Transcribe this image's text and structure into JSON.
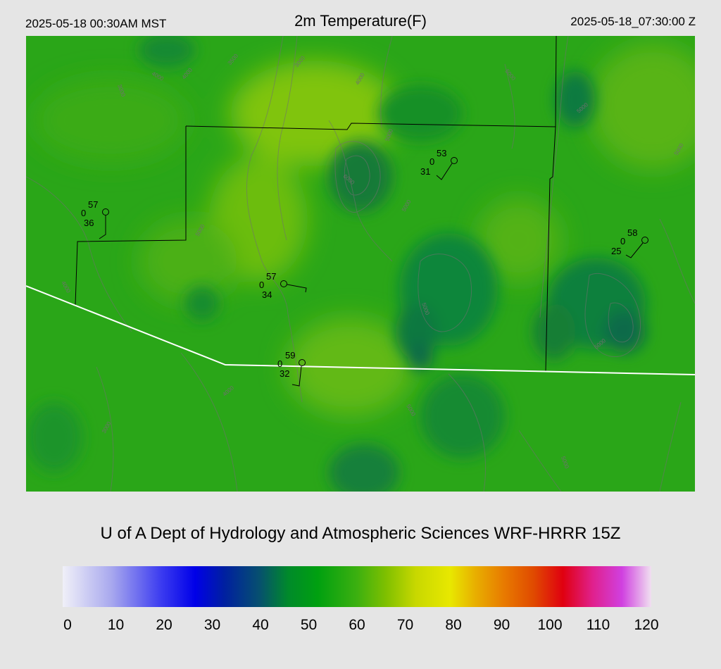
{
  "header": {
    "local_time": "2025-05-18 00:30AM MST",
    "title": "2m Temperature(F)",
    "utc_time": "2025-05-18_07:30:00 Z"
  },
  "caption": "U of A Dept of Hydrology and Atmospheric Sciences WRF-HRRR 15Z",
  "stations": [
    {
      "temp": "57",
      "precip": "0",
      "dewpoint": "36"
    },
    {
      "temp": "53",
      "precip": "0",
      "dewpoint": "31"
    },
    {
      "temp": "58",
      "precip": "0",
      "dewpoint": "25"
    },
    {
      "temp": "57",
      "precip": "0",
      "dewpoint": "34"
    },
    {
      "temp": "59",
      "precip": "0",
      "dewpoint": "32"
    }
  ],
  "contour_labels": [
    "3500",
    "3000",
    "4000",
    "4000",
    "4000",
    "5000",
    "6000",
    "5000",
    "5000",
    "5000",
    "5000",
    "3000",
    "4000",
    "5000",
    "5000",
    "4000",
    "3000",
    "5000",
    "5000",
    "5000"
  ],
  "colorbar": {
    "ticks": [
      "0",
      "10",
      "20",
      "30",
      "40",
      "50",
      "60",
      "70",
      "80",
      "90",
      "100",
      "110",
      "120"
    ],
    "stops": [
      {
        "value": 0,
        "color": "#f0f0f8"
      },
      {
        "value": 10,
        "color": "#a8a8ee"
      },
      {
        "value": 20,
        "color": "#3c3cf0"
      },
      {
        "value": 27,
        "color": "#0000e8"
      },
      {
        "value": 33,
        "color": "#0020a0"
      },
      {
        "value": 40,
        "color": "#064f70"
      },
      {
        "value": 46,
        "color": "#008a2a"
      },
      {
        "value": 52,
        "color": "#00a010"
      },
      {
        "value": 60,
        "color": "#3cb010"
      },
      {
        "value": 66,
        "color": "#80c000"
      },
      {
        "value": 72,
        "color": "#c8d800"
      },
      {
        "value": 79,
        "color": "#e8e800"
      },
      {
        "value": 84,
        "color": "#e8b000"
      },
      {
        "value": 90,
        "color": "#e87a00"
      },
      {
        "value": 96,
        "color": "#e04a00"
      },
      {
        "value": 102,
        "color": "#e00010"
      },
      {
        "value": 108,
        "color": "#e0208c"
      },
      {
        "value": 114,
        "color": "#d040e0"
      },
      {
        "value": 120,
        "color": "#f0e0f0"
      }
    ]
  },
  "colors": {
    "background": "#e5e5e5",
    "field_base": "#2aa618",
    "warm_area": "#7cc40c",
    "cool_area": "#0b7a3a",
    "border_line": "#000000",
    "state_line": "#ffffff",
    "contour": "#707070"
  }
}
